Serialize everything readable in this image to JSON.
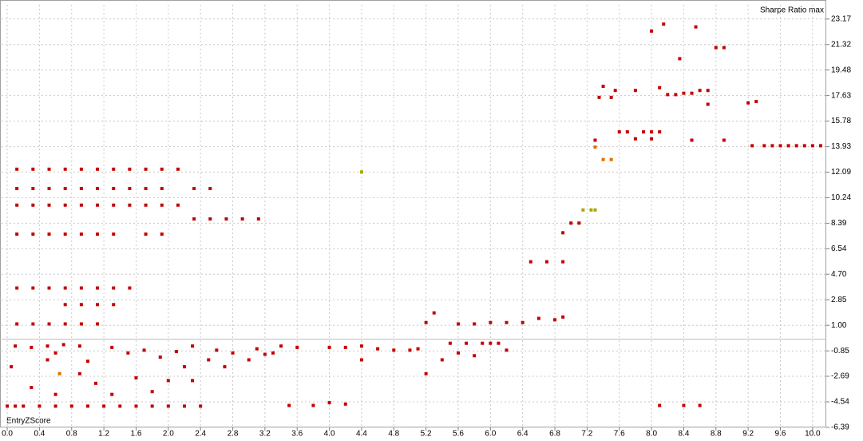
{
  "chart_data": {
    "type": "scatter",
    "title": "Sharpe Ratio max",
    "x_label": "EntryZScore",
    "xlim": [
      -0.07,
      10.17
    ],
    "ylim": [
      -6.39,
      24.2
    ],
    "grid": true,
    "xticks": [
      {
        "value": 0,
        "label": "0.0"
      },
      0.4,
      0.8,
      1.2,
      1.6,
      {
        "value": 2,
        "label": "2.0"
      },
      2.4,
      2.8,
      3.2,
      3.6,
      {
        "value": 4,
        "label": "4.0"
      },
      4.4,
      4.8,
      5.2,
      5.6,
      {
        "value": 6,
        "label": "6.0"
      },
      6.4,
      6.8,
      7.2,
      7.6,
      {
        "value": 8,
        "label": "8.0"
      },
      8.4,
      8.8,
      9.2,
      9.6,
      {
        "value": 10,
        "label": "10.0"
      }
    ],
    "yticks": [
      23.17,
      21.32,
      19.48,
      17.63,
      15.78,
      13.93,
      12.09,
      10.24,
      8.39,
      6.54,
      {
        "value": 4.7,
        "label": "4.70"
      },
      2.85,
      {
        "value": 1,
        "label": "1.00"
      },
      -0.85,
      -2.69,
      -4.54,
      -6.39
    ],
    "series": [
      {
        "color": "#c40000",
        "x": [
          0.12,
          0.32,
          0.52,
          0.72,
          0.92,
          1.12,
          1.32,
          1.52,
          1.72,
          1.92,
          2.12,
          0.12,
          0.32,
          0.52,
          0.72,
          0.92,
          1.12,
          1.32,
          1.52,
          1.72,
          1.92,
          2.32,
          2.52,
          0.12,
          0.32,
          0.52,
          0.72,
          0.92,
          1.12,
          1.32,
          1.52,
          1.72,
          1.92,
          2.12,
          2.32,
          2.52,
          2.72,
          2.92,
          3.12,
          0.12,
          0.32,
          0.52,
          0.72,
          0.92,
          1.12,
          1.32,
          1.72,
          1.92,
          0.12,
          0.32,
          0.52,
          0.72,
          0.92,
          1.12,
          1.32,
          1.52,
          0.72,
          0.92,
          1.12,
          1.32,
          0.12,
          0.32,
          0.52,
          0.72,
          0.92,
          1.12,
          0,
          0.1,
          0.2,
          0.4,
          0.6,
          0.8,
          1,
          1.2,
          1.4,
          1.6,
          1.8,
          2,
          2.2,
          2.4,
          0.05,
          0.1,
          0.3,
          0.3,
          0.5,
          0.5,
          0.6,
          0.7,
          0.9,
          0.9,
          1,
          1.1,
          1.3,
          1.3,
          1.5,
          1.6,
          1.7,
          1.8,
          1.9,
          2,
          2.1,
          2.2,
          2.3,
          2.3,
          2.5,
          2.6,
          2.7,
          2.8,
          3,
          3.1,
          3.3,
          3.4,
          3.5,
          3.6,
          3.8,
          4,
          4.2,
          4,
          4.2,
          4.4,
          4.4,
          4.6,
          4.8,
          5,
          5.1,
          5.2,
          5.2,
          5.3,
          5.4,
          5.5,
          5.6,
          5.7,
          5.8,
          5.9,
          6,
          6.1,
          6.2,
          5.6,
          5.8,
          6,
          6.2,
          6.4,
          6.6,
          6.8,
          6.9,
          6.5,
          6.7,
          6.9,
          6.9,
          7,
          7.1,
          7.3,
          7.35,
          7.4,
          7.5,
          7.55,
          7.6,
          7.7,
          7.8,
          7.8,
          7.9,
          8,
          8,
          8.1,
          8,
          8.1,
          8.15,
          8.2,
          8.3,
          8.35,
          8.4,
          8.5,
          8.55,
          8.6,
          8.7,
          8.7,
          8.8,
          8.9,
          9.2,
          9.3,
          9.25,
          9.4,
          9.5,
          9.6,
          9.7,
          9.8,
          9.9,
          10,
          10.1,
          8.5,
          8.9,
          8.1,
          8.4,
          8.6,
          3.2,
          0.6
        ],
        "values": [
          12.3,
          12.3,
          12.3,
          12.3,
          12.3,
          12.3,
          12.3,
          12.3,
          12.3,
          12.3,
          12.3,
          10.9,
          10.9,
          10.9,
          10.9,
          10.9,
          10.9,
          10.9,
          10.9,
          10.9,
          10.9,
          10.9,
          10.9,
          9.7,
          9.7,
          9.7,
          9.7,
          9.7,
          9.7,
          9.7,
          9.7,
          9.7,
          9.7,
          9.7,
          8.7,
          8.7,
          8.7,
          8.7,
          8.7,
          7.6,
          7.6,
          7.6,
          7.6,
          7.6,
          7.6,
          7.6,
          7.6,
          7.6,
          3.7,
          3.7,
          3.7,
          3.7,
          3.7,
          3.7,
          3.7,
          3.7,
          2.5,
          2.5,
          2.5,
          2.5,
          1.1,
          1.1,
          1.1,
          1.1,
          1.1,
          1.1,
          -4.85,
          -4.85,
          -4.85,
          -4.85,
          -4.85,
          -4.85,
          -4.85,
          -4.85,
          -4.85,
          -4.85,
          -4.85,
          -4.85,
          -4.85,
          -4.85,
          -2,
          -0.5,
          -0.6,
          -3.5,
          -0.5,
          -1.5,
          -4,
          -0.4,
          -0.5,
          -2.5,
          -1.6,
          -3.2,
          -0.6,
          -4,
          -1,
          -2.8,
          -0.8,
          -3.8,
          -1.3,
          -3,
          -0.9,
          -2,
          -0.5,
          -3,
          -1.5,
          -0.8,
          -2,
          -1,
          -1.5,
          -0.7,
          -1,
          -0.5,
          -4.8,
          -0.6,
          -4.8,
          -4.6,
          -4.7,
          -0.6,
          -0.6,
          -0.5,
          -1.5,
          -0.7,
          -0.8,
          -0.8,
          -0.7,
          -2.5,
          1.2,
          1.9,
          -1.5,
          -0.3,
          -1,
          -0.3,
          -1.2,
          -0.3,
          -0.3,
          -0.3,
          -0.8,
          1.1,
          1.1,
          1.2,
          1.2,
          1.2,
          1.5,
          1.4,
          1.6,
          5.6,
          5.6,
          5.6,
          7.7,
          8.4,
          8.4,
          14.4,
          17.5,
          18.3,
          17.5,
          18,
          15,
          15,
          18,
          14.5,
          15,
          14.5,
          15,
          15,
          22.3,
          18.2,
          22.8,
          17.7,
          17.7,
          20.3,
          17.8,
          17.8,
          22.6,
          18,
          18,
          17,
          21.1,
          21.1,
          17.1,
          17.2,
          14,
          14,
          14,
          14,
          14,
          14,
          14,
          14,
          14,
          14.4,
          14.4,
          -4.8,
          -4.8,
          -4.8,
          -1.1,
          -1
        ]
      },
      {
        "color": "#e07000",
        "x": [
          0.65,
          7.3,
          7.4,
          7.5
        ],
        "values": [
          -2.5,
          13.9,
          13,
          13
        ]
      },
      {
        "color": "#a8a800",
        "x": [
          4.4,
          7.15,
          7.25,
          7.3
        ],
        "values": [
          12.1,
          9.35,
          9.35,
          9.35
        ]
      }
    ]
  }
}
